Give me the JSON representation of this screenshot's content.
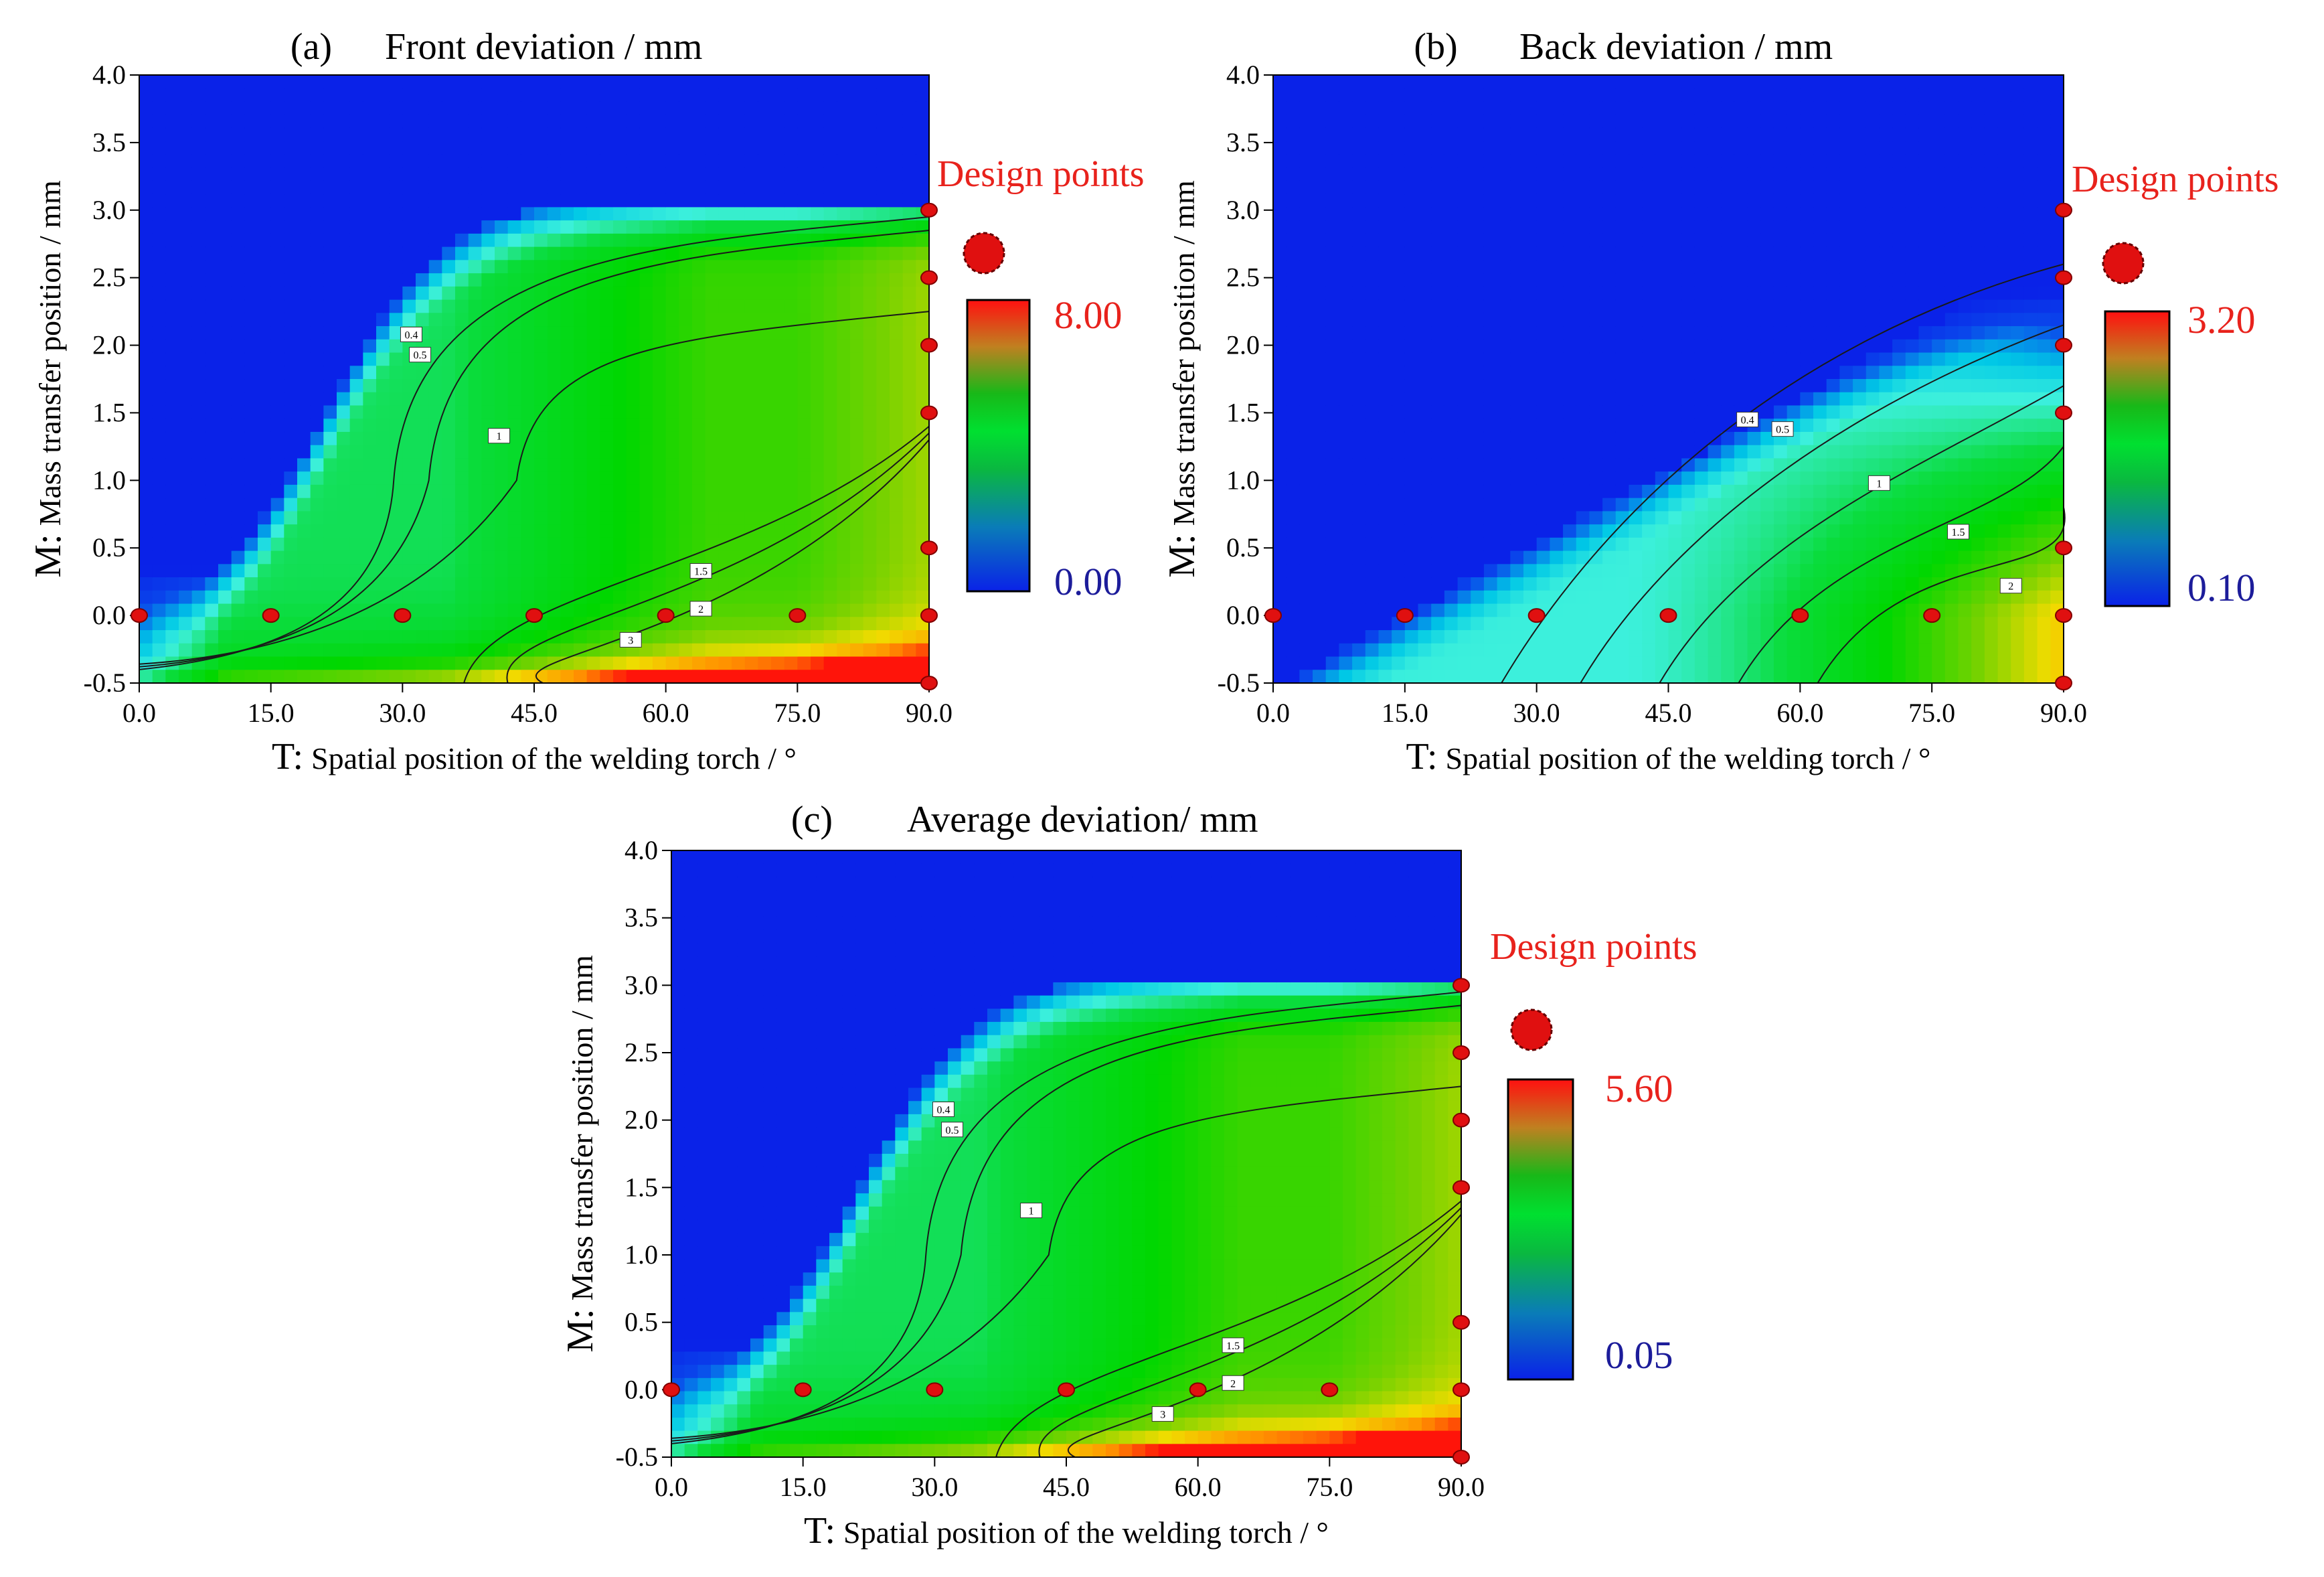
{
  "chart_data": [
    {
      "type": "heatmap",
      "panel_label": "(a)",
      "title": "Front deviation / mm",
      "xlabel_prefix": "T:",
      "xlabel": "Spatial position of the welding torch / °",
      "ylabel_prefix": "M:",
      "ylabel": "Mass transfer position / mm",
      "xlim": [
        0,
        90
      ],
      "ylim": [
        -0.5,
        4.0
      ],
      "x_ticks": [
        "0.0",
        "15.0",
        "30.0",
        "45.0",
        "60.0",
        "75.0",
        "90.0"
      ],
      "y_ticks": [
        "-0.5",
        "0.0",
        "0.5",
        "1.0",
        "1.5",
        "2.0",
        "2.5",
        "3.0",
        "3.5",
        "4.0"
      ],
      "colorbar": {
        "max_label": "8.00",
        "min_label": "0.00"
      },
      "legend_label": "Design points",
      "contour_levels": [
        "0.4",
        "0.5",
        "1",
        "1.5",
        "2",
        "3"
      ],
      "design_points": [
        [
          0,
          0
        ],
        [
          15,
          0
        ],
        [
          30,
          0
        ],
        [
          45,
          0
        ],
        [
          60,
          0
        ],
        [
          75,
          0
        ],
        [
          90,
          0
        ],
        [
          90,
          0.5
        ],
        [
          90,
          1.5
        ],
        [
          90,
          2.0
        ],
        [
          90,
          2.5
        ],
        [
          90,
          3.0
        ],
        [
          90,
          -0.5
        ]
      ]
    },
    {
      "type": "heatmap",
      "panel_label": "(b)",
      "title": "Back deviation / mm",
      "xlabel_prefix": "T:",
      "xlabel": "Spatial position of the welding torch / °",
      "ylabel_prefix": "M:",
      "ylabel": "Mass transfer position / mm",
      "xlim": [
        0,
        90
      ],
      "ylim": [
        -0.5,
        4.0
      ],
      "x_ticks": [
        "0.0",
        "15.0",
        "30.0",
        "45.0",
        "60.0",
        "75.0",
        "90.0"
      ],
      "y_ticks": [
        "-0.5",
        "0.0",
        "0.5",
        "1.0",
        "1.5",
        "2.0",
        "2.5",
        "3.0",
        "3.5",
        "4.0"
      ],
      "colorbar": {
        "max_label": "3.20",
        "min_label": "0.10"
      },
      "legend_label": "Design points",
      "contour_levels": [
        "0.4",
        "0.5",
        "1",
        "1.5",
        "2"
      ],
      "design_points": [
        [
          0,
          0
        ],
        [
          15,
          0
        ],
        [
          30,
          0
        ],
        [
          45,
          0
        ],
        [
          60,
          0
        ],
        [
          75,
          0
        ],
        [
          90,
          0
        ],
        [
          90,
          0.5
        ],
        [
          90,
          1.5
        ],
        [
          90,
          2.0
        ],
        [
          90,
          2.5
        ],
        [
          90,
          3.0
        ],
        [
          90,
          -0.5
        ]
      ]
    },
    {
      "type": "heatmap",
      "panel_label": "(c)",
      "title": "Average deviation/ mm",
      "xlabel_prefix": "T:",
      "xlabel": "Spatial position of the welding torch / °",
      "ylabel_prefix": "M:",
      "ylabel": "Mass transfer position / mm",
      "xlim": [
        0,
        90
      ],
      "ylim": [
        -0.5,
        4.0
      ],
      "x_ticks": [
        "0.0",
        "15.0",
        "30.0",
        "45.0",
        "60.0",
        "75.0",
        "90.0"
      ],
      "y_ticks": [
        "-0.5",
        "0.0",
        "0.5",
        "1.0",
        "1.5",
        "2.0",
        "2.5",
        "3.0",
        "3.5",
        "4.0"
      ],
      "colorbar": {
        "max_label": "5.60",
        "min_label": "0.05"
      },
      "legend_label": "Design points",
      "contour_levels": [
        "0.4",
        "0.5",
        "1",
        "1.5",
        "2",
        "3"
      ],
      "design_points": [
        [
          0,
          0
        ],
        [
          15,
          0
        ],
        [
          30,
          0
        ],
        [
          45,
          0
        ],
        [
          60,
          0
        ],
        [
          75,
          0
        ],
        [
          90,
          0
        ],
        [
          90,
          0.5
        ],
        [
          90,
          1.5
        ],
        [
          90,
          2.0
        ],
        [
          90,
          2.5
        ],
        [
          90,
          3.0
        ],
        [
          90,
          -0.5
        ]
      ]
    }
  ],
  "colors": {
    "accent_red": "#e8221c",
    "min_label_blue": "#1c1c9a",
    "point_fill": "#e01010",
    "point_stroke": "#800000"
  }
}
